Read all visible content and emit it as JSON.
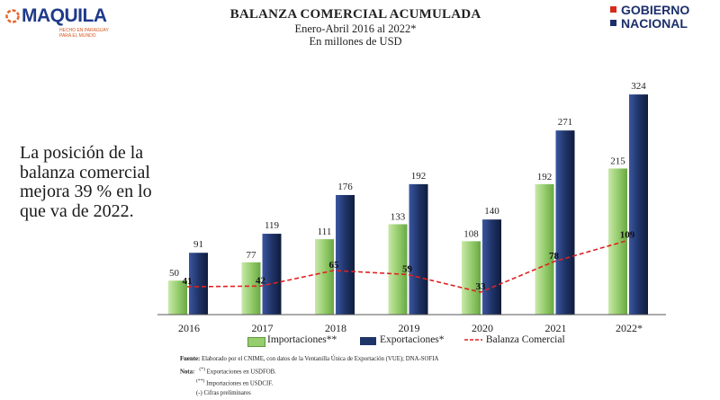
{
  "header": {
    "logo_left": {
      "name": "MAQUILA",
      "tagline_1": "HECHO EN PARAGUAY",
      "tagline_2": "PARA EL MUNDO"
    },
    "title": "BALANZA COMERCIAL ACUMULADA",
    "subtitle_1": "Enero-Abril 2016 al 2022*",
    "subtitle_2": "En millones de USD",
    "logo_right": {
      "line_1": "GOBIERNO",
      "line_2": "NACIONAL"
    }
  },
  "side_note": "La posición de la balanza comercial mejora 39 % en lo que va de 2022.",
  "colors": {
    "importaciones": "#96cd6e",
    "exportaciones": "#1f3468",
    "balanza": "#e02020"
  },
  "chart_data": {
    "type": "bar",
    "categories": [
      "2016",
      "2017",
      "2018",
      "2019",
      "2020",
      "2021",
      "2022*"
    ],
    "series": [
      {
        "name": "Importaciones**",
        "type": "bar",
        "values": [
          50,
          77,
          111,
          133,
          108,
          192,
          215
        ]
      },
      {
        "name": "Exportaciones*",
        "type": "bar",
        "values": [
          91,
          119,
          176,
          192,
          140,
          271,
          324
        ]
      },
      {
        "name": "Balanza Comercial",
        "type": "line",
        "style": "dashed",
        "values": [
          41,
          42,
          65,
          59,
          33,
          78,
          109
        ]
      }
    ],
    "ylim": [
      0,
      340
    ],
    "grid": false,
    "legend_position": "bottom"
  },
  "legend": {
    "importaciones": "Importaciones**",
    "exportaciones": "Exportaciones*",
    "balanza": "Balanza Comercial"
  },
  "footnotes": {
    "source_label": "Fuente:",
    "source_text": "Elaborado por el CNIME, con datos de la Ventanilla Única de Exportación (VUE); DNA-SOFIA",
    "note_label": "Nota:",
    "note_1_mark": "(*)",
    "note_1": "Exportaciones en USDFOB.",
    "note_2_mark": "(**)",
    "note_2": "Importaciones en USDCIF.",
    "note_3": "(-) Cifras preliminares"
  }
}
